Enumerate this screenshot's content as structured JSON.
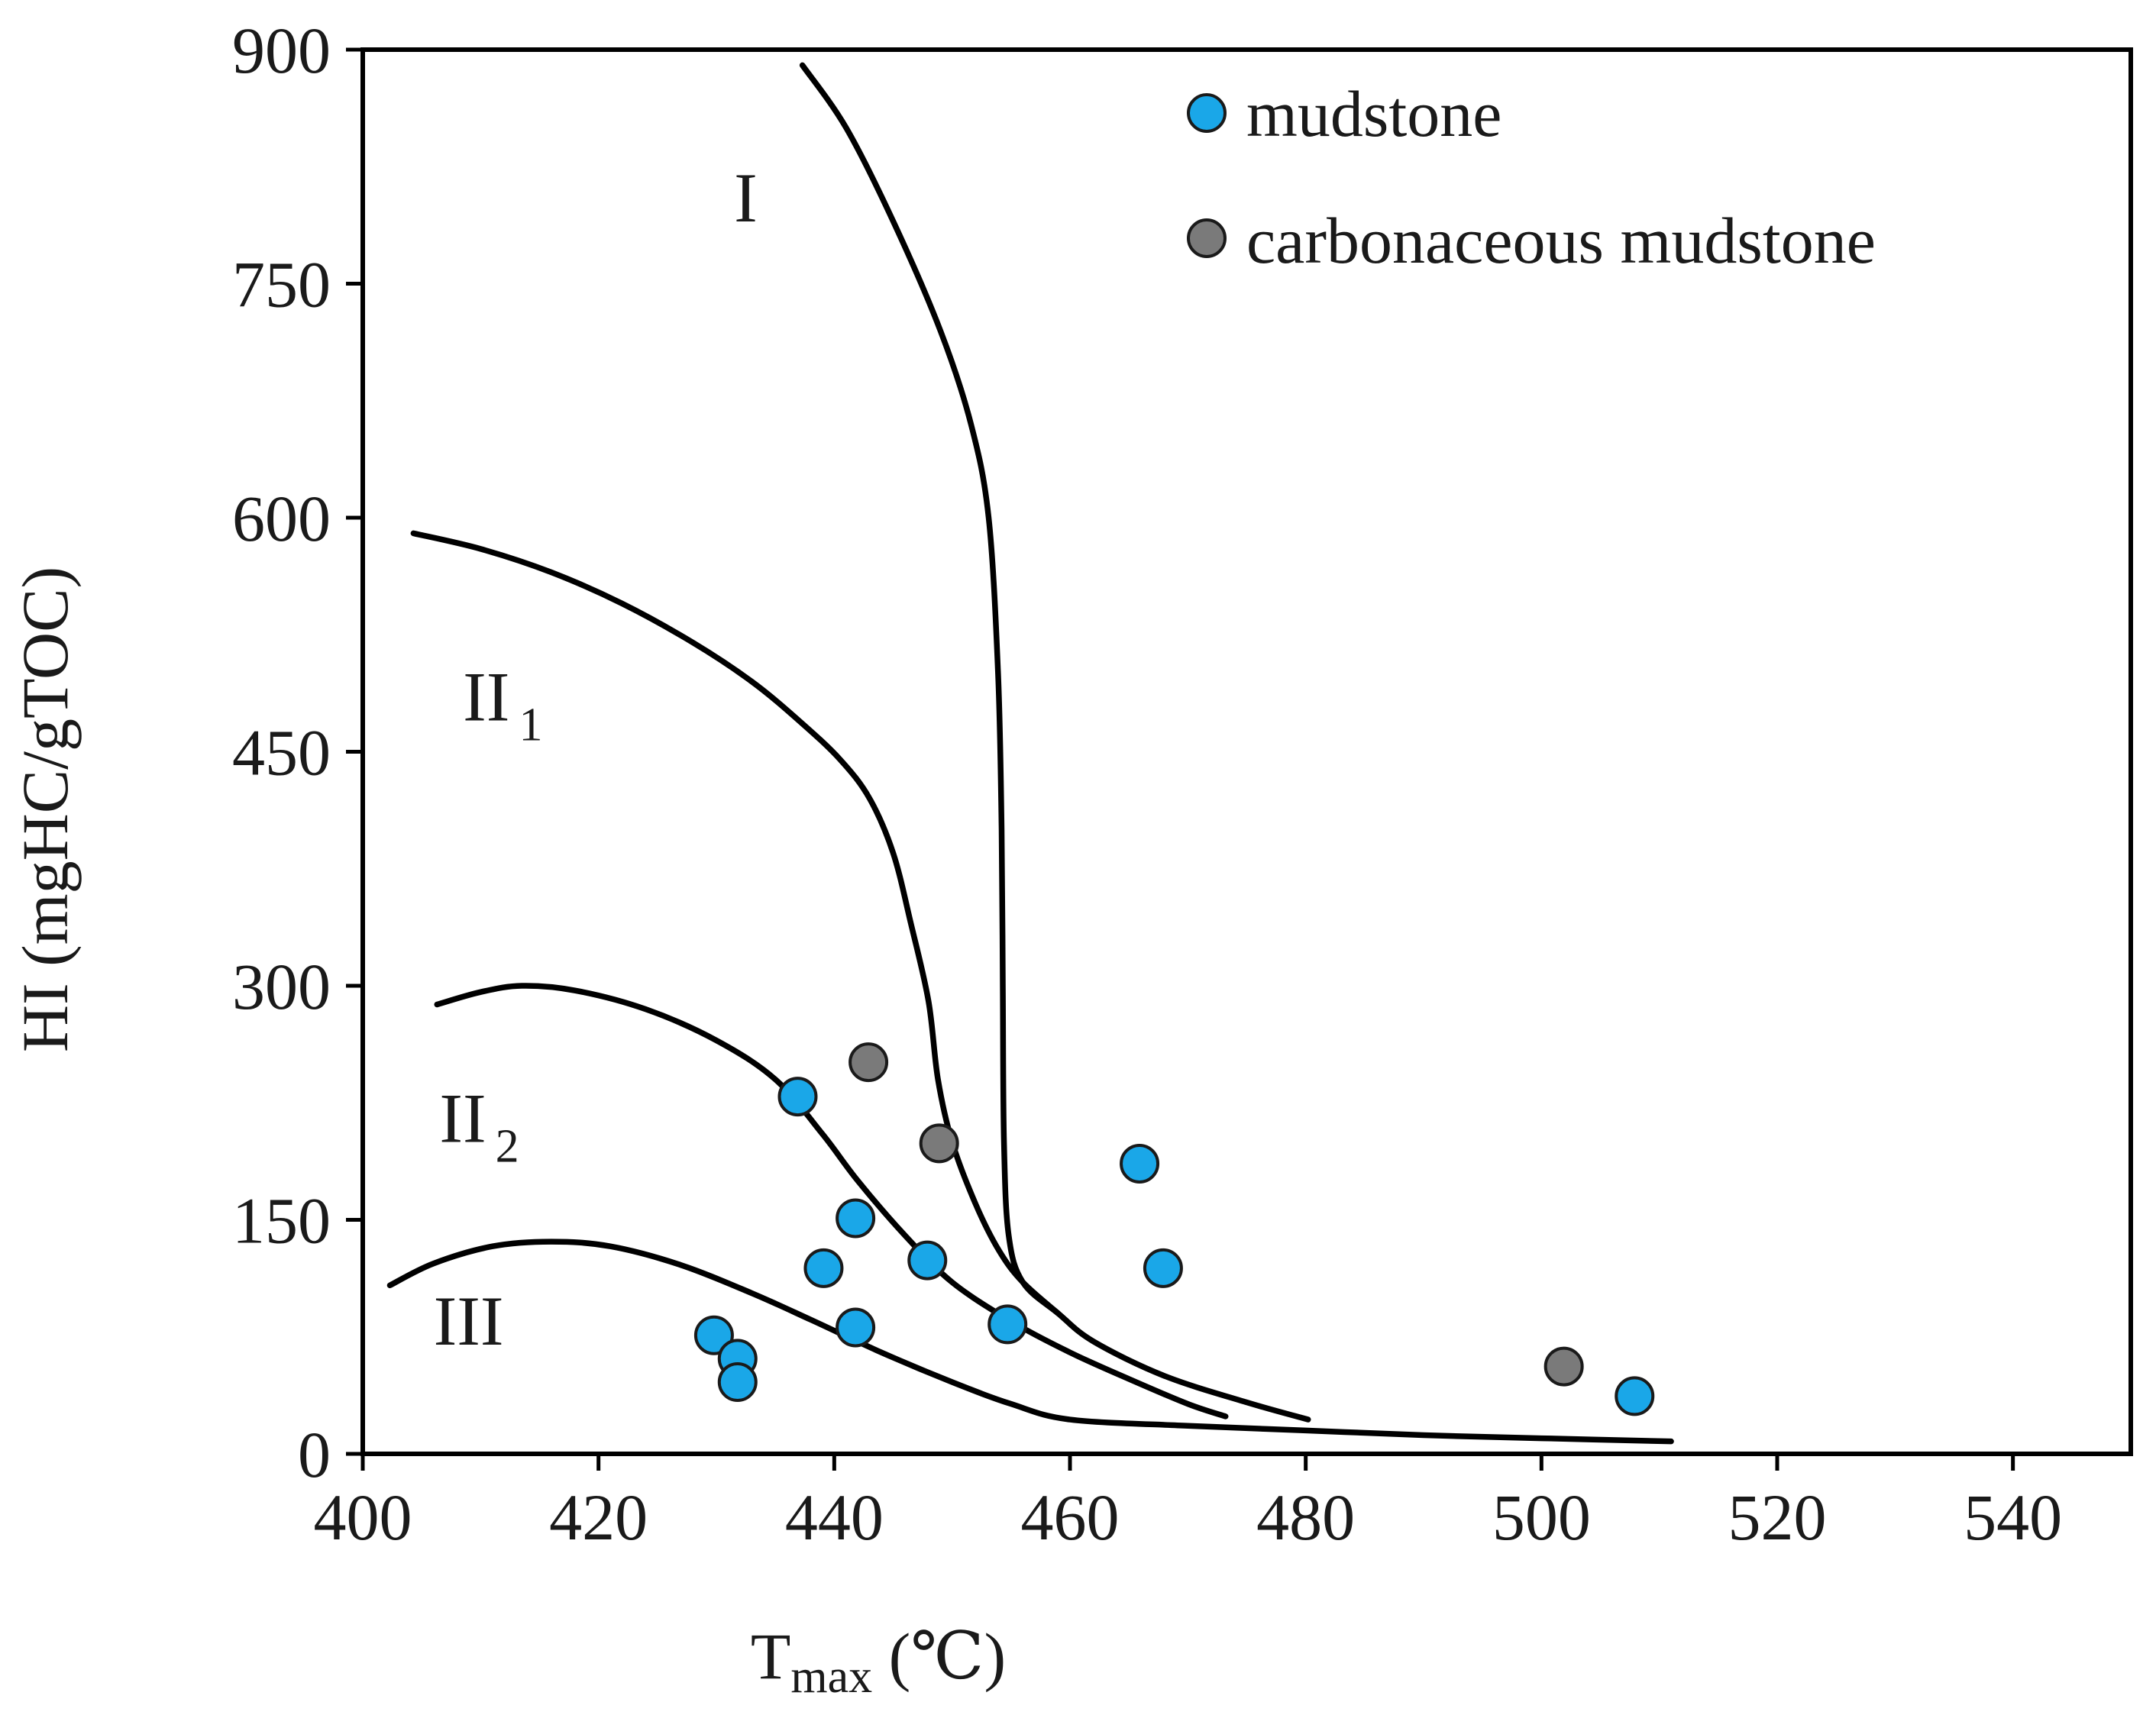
{
  "chart_data": {
    "type": "scatter",
    "title": "",
    "xlabel": {
      "main": "T",
      "sub": "max",
      "unit": " (℃)"
    },
    "ylabel": "HI (mgHC/gTOC)",
    "xlim": [
      400,
      550
    ],
    "ylim": [
      0,
      900
    ],
    "xticks": [
      400,
      420,
      440,
      460,
      480,
      500,
      520,
      540
    ],
    "yticks": [
      0,
      150,
      300,
      450,
      600,
      750,
      900
    ],
    "grid": false,
    "legend_position": "top-right",
    "colors": {
      "mudstone": "#1aa7e8",
      "carbonaceous": "#7a7a7a"
    },
    "series": [
      {
        "name": "mudstone",
        "color": "#1aa7e8",
        "points": [
          {
            "x": 429.8,
            "y": 76
          },
          {
            "x": 431.8,
            "y": 61
          },
          {
            "x": 431.8,
            "y": 46
          },
          {
            "x": 436.9,
            "y": 229
          },
          {
            "x": 439.1,
            "y": 119
          },
          {
            "x": 441.8,
            "y": 81
          },
          {
            "x": 441.8,
            "y": 151
          },
          {
            "x": 447.9,
            "y": 124
          },
          {
            "x": 454.7,
            "y": 83
          },
          {
            "x": 465.9,
            "y": 186
          },
          {
            "x": 467.9,
            "y": 119
          },
          {
            "x": 507.9,
            "y": 37
          }
        ]
      },
      {
        "name": "carbonaceous mudstone",
        "color": "#7a7a7a",
        "points": [
          {
            "x": 442.9,
            "y": 251
          },
          {
            "x": 448.9,
            "y": 199
          },
          {
            "x": 501.9,
            "y": 56
          }
        ]
      }
    ],
    "boundary_curves": [
      {
        "name": "I",
        "points": [
          [
            437.3,
            890
          ],
          [
            441,
            850
          ],
          [
            445,
            790
          ],
          [
            449,
            720
          ],
          [
            451.6,
            660
          ],
          [
            453.1,
            600
          ],
          [
            453.9,
            500
          ],
          [
            454.2,
            400
          ],
          [
            454.3,
            300
          ],
          [
            454.4,
            200
          ],
          [
            454.8,
            140
          ],
          [
            456,
            110
          ],
          [
            459,
            90
          ],
          [
            462,
            72
          ],
          [
            468,
            50
          ],
          [
            475,
            33
          ],
          [
            480.2,
            22
          ]
        ]
      },
      {
        "name": "II1",
        "points": [
          [
            404.3,
            590
          ],
          [
            410,
            580
          ],
          [
            416,
            565
          ],
          [
            422,
            545
          ],
          [
            428,
            520
          ],
          [
            433,
            495
          ],
          [
            437,
            470
          ],
          [
            440.5,
            445
          ],
          [
            443,
            420
          ],
          [
            445,
            385
          ],
          [
            446.5,
            340
          ],
          [
            448,
            290
          ],
          [
            448.8,
            240
          ],
          [
            450,
            200
          ],
          [
            452,
            160
          ],
          [
            454,
            130
          ],
          [
            456,
            110
          ],
          [
            459,
            90
          ]
        ]
      },
      {
        "name": "II2",
        "points": [
          [
            406.3,
            288
          ],
          [
            410,
            296
          ],
          [
            413.5,
            300
          ],
          [
            418,
            297
          ],
          [
            424,
            285
          ],
          [
            430,
            265
          ],
          [
            435,
            240
          ],
          [
            439,
            205
          ],
          [
            442,
            175
          ],
          [
            446,
            140
          ],
          [
            450,
            110
          ],
          [
            455,
            85
          ],
          [
            460,
            65
          ],
          [
            465,
            48
          ],
          [
            470,
            32
          ],
          [
            473.2,
            24
          ]
        ]
      },
      {
        "name": "III",
        "points": [
          [
            402.3,
            108
          ],
          [
            406,
            122
          ],
          [
            411,
            133
          ],
          [
            416,
            136
          ],
          [
            421,
            133
          ],
          [
            427,
            121
          ],
          [
            433,
            103
          ],
          [
            438,
            86
          ],
          [
            444,
            65
          ],
          [
            450,
            46
          ],
          [
            455,
            32
          ],
          [
            460,
            22
          ],
          [
            470,
            18
          ],
          [
            480,
            15
          ],
          [
            490,
            12
          ],
          [
            500,
            10
          ],
          [
            511,
            8
          ]
        ]
      }
    ],
    "region_labels": [
      {
        "id": "I",
        "text": "I",
        "sub": ""
      },
      {
        "id": "II1",
        "text": "II",
        "sub": "1"
      },
      {
        "id": "II2",
        "text": "II",
        "sub": "2"
      },
      {
        "id": "III",
        "text": "III",
        "sub": ""
      }
    ],
    "legend": [
      {
        "label": "mudstone",
        "color": "#1aa7e8"
      },
      {
        "label": "carbonaceous mudstone",
        "color": "#7a7a7a"
      }
    ]
  }
}
